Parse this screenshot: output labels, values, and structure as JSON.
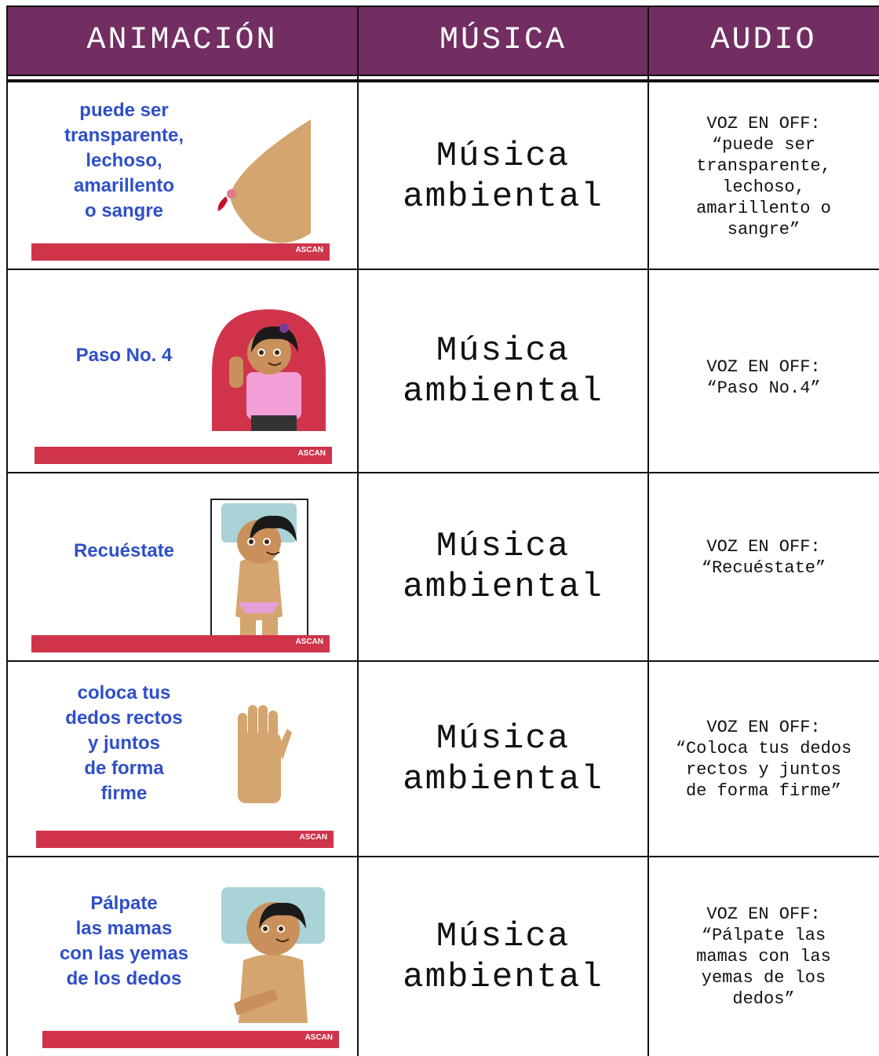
{
  "header": {
    "columns": [
      "ANIMACIÓN",
      "MÚSICA",
      "AUDIO"
    ]
  },
  "brand": "ASCAN",
  "rows": [
    {
      "animation": [
        "puede ser",
        "transparente,",
        "lechoso,",
        "amarillento",
        "o sangre"
      ],
      "music": [
        "Música",
        "ambiental"
      ],
      "audio": [
        "VOZ EN OFF:",
        "“puede ser",
        "transparente,",
        "lechoso,",
        "amarillento o",
        "sangre”"
      ]
    },
    {
      "animation": [
        "Paso No. 4"
      ],
      "music": [
        "Música",
        "ambiental"
      ],
      "audio": [
        "VOZ EN OFF:",
        "“Paso No.4”"
      ]
    },
    {
      "animation": [
        "Recuéstate"
      ],
      "music": [
        "Música",
        "ambiental"
      ],
      "audio": [
        "VOZ EN OFF:",
        "“Recuéstate”"
      ]
    },
    {
      "animation": [
        "coloca tus",
        "dedos rectos",
        "y juntos",
        "de forma",
        "firme"
      ],
      "music": [
        "Música",
        "ambiental"
      ],
      "audio": [
        "VOZ EN OFF:",
        "“Coloca tus dedos",
        "rectos y juntos",
        "de forma firme”"
      ]
    },
    {
      "animation": [
        "Pálpate",
        "las mamas",
        "con las yemas",
        "de los dedos"
      ],
      "music": [
        "Música",
        "ambiental"
      ],
      "audio": [
        "VOZ EN OFF:",
        "“Pálpate las",
        "mamas con las",
        "yemas de los",
        "dedos”"
      ]
    }
  ]
}
